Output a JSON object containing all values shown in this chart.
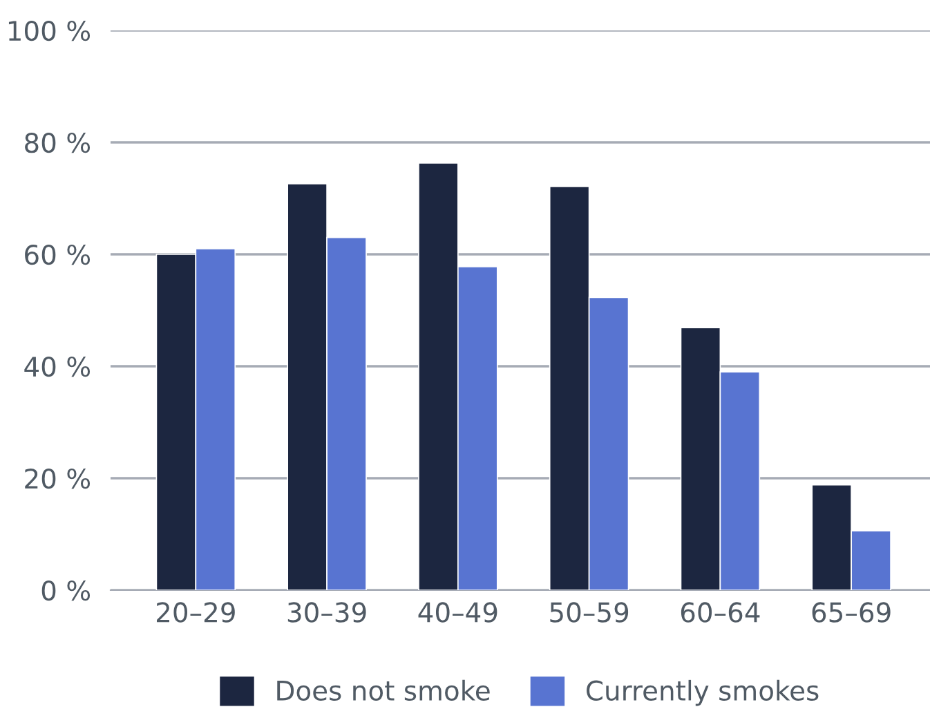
{
  "chart_data": {
    "type": "bar",
    "categories": [
      "20–29",
      "30–39",
      "40–49",
      "50–59",
      "60–64",
      "65–69"
    ],
    "series": [
      {
        "name": "Does not smoke",
        "color": "#1c2640",
        "values": [
          60,
          72.6,
          76.3,
          72.1,
          46.9,
          18.8
        ]
      },
      {
        "name": "Currently smokes",
        "color": "#5874d1",
        "values": [
          61,
          63,
          57.8,
          52.3,
          39,
          10.6
        ]
      }
    ],
    "ylim": [
      0,
      100
    ],
    "yticks": [
      {
        "value": 0,
        "label": "0 %"
      },
      {
        "value": 20,
        "label": "20 %"
      },
      {
        "value": 40,
        "label": "40 %"
      },
      {
        "value": 60,
        "label": "60 %"
      },
      {
        "value": 80,
        "label": "80 %"
      },
      {
        "value": 100,
        "label": "100 %"
      }
    ],
    "grid": "y",
    "legend": "bottom"
  }
}
